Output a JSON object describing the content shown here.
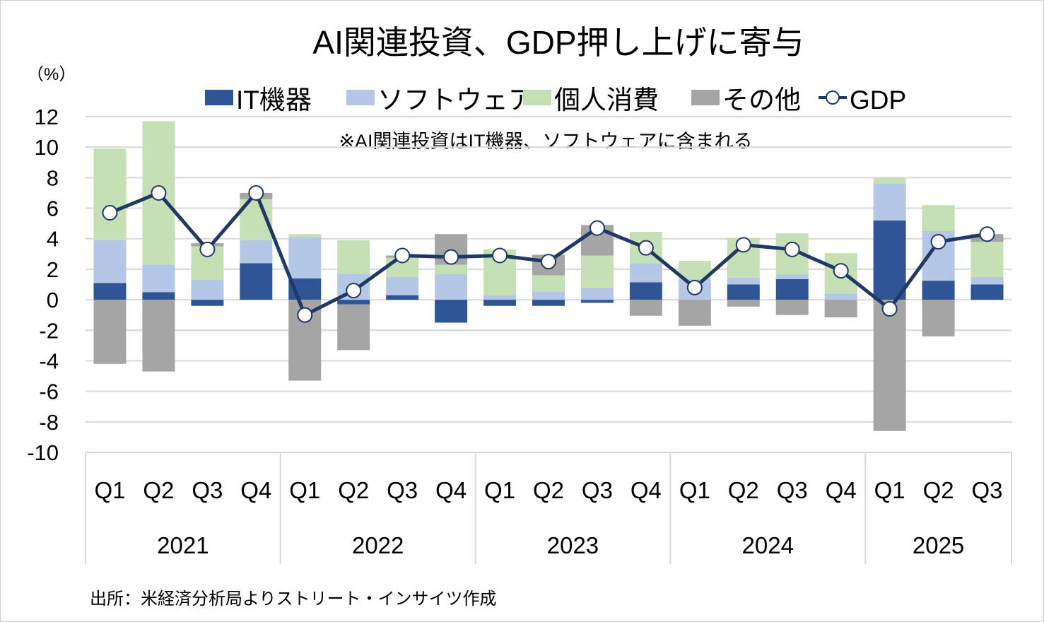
{
  "chart_data": {
    "type": "bar",
    "stacked": true,
    "title": "AI関連投資、GDP押し上げに寄与",
    "unit_label": "（%）",
    "note": "※AI関連投資はIT機器、ソフトウェアに含まれる",
    "source": "出所：米経済分析局よりストリート・インサイツ作成",
    "ylim": [
      -10,
      12
    ],
    "yticks": [
      12,
      10,
      8,
      6,
      4,
      2,
      0,
      -2,
      -4,
      -6,
      -8,
      -10
    ],
    "grid": true,
    "legend_position": "top",
    "groups": [
      {
        "year": "2021",
        "quarters": [
          "Q1",
          "Q2",
          "Q3",
          "Q4"
        ]
      },
      {
        "year": "2022",
        "quarters": [
          "Q1",
          "Q2",
          "Q3",
          "Q4"
        ]
      },
      {
        "year": "2023",
        "quarters": [
          "Q1",
          "Q2",
          "Q3",
          "Q4"
        ]
      },
      {
        "year": "2024",
        "quarters": [
          "Q1",
          "Q2",
          "Q3",
          "Q4"
        ]
      },
      {
        "year": "2025",
        "quarters": [
          "Q1",
          "Q2",
          "Q3"
        ]
      }
    ],
    "series": [
      {
        "name": "IT機器",
        "kind": "bar",
        "color": "#2F5597",
        "values": [
          1.1,
          0.5,
          -0.4,
          2.4,
          1.4,
          -0.3,
          0.3,
          -1.5,
          -0.4,
          -0.4,
          -0.2,
          1.15,
          0.0,
          1.0,
          1.35,
          0.0,
          5.2,
          1.25,
          1.0
        ]
      },
      {
        "name": "ソフトウェア",
        "kind": "bar",
        "color": "#B4C7E7",
        "values": [
          2.8,
          1.8,
          1.3,
          1.5,
          2.7,
          1.7,
          1.2,
          1.7,
          0.3,
          0.55,
          0.8,
          1.25,
          1.35,
          0.45,
          0.3,
          0.4,
          2.4,
          3.25,
          0.5
        ]
      },
      {
        "name": "個人消費",
        "kind": "bar",
        "color": "#C5E0B4",
        "values": [
          6.0,
          9.4,
          2.2,
          2.7,
          0.2,
          2.2,
          1.25,
          0.6,
          3.0,
          1.05,
          2.1,
          2.05,
          1.2,
          2.6,
          2.7,
          2.65,
          0.4,
          1.7,
          2.3
        ]
      },
      {
        "name": "その他",
        "kind": "bar",
        "color": "#A5A5A5",
        "values": [
          -4.2,
          -4.7,
          0.2,
          0.4,
          -5.3,
          -3.0,
          0.15,
          2.0,
          0.0,
          1.35,
          2.0,
          -1.05,
          -1.7,
          -0.45,
          -1.0,
          -1.15,
          -8.6,
          -2.4,
          0.5
        ]
      },
      {
        "name": "GDP",
        "kind": "line",
        "color": "#203864",
        "values": [
          5.7,
          7.0,
          3.3,
          7.0,
          -1.0,
          0.6,
          2.9,
          2.8,
          2.9,
          2.5,
          4.7,
          3.4,
          0.8,
          3.6,
          3.3,
          1.9,
          -0.6,
          3.8,
          4.3
        ]
      }
    ]
  }
}
